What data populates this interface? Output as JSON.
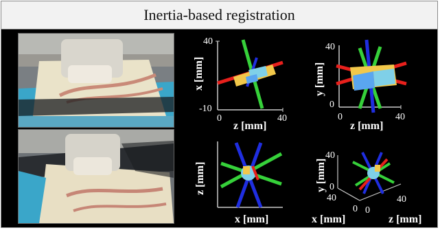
{
  "title": "Inertia-based registration",
  "plots": {
    "top_left": {
      "y_label": "x [mm]",
      "x_label": "z [mm]",
      "y_ticks": [
        "40",
        "-10"
      ],
      "x_ticks": [
        "0",
        "40"
      ]
    },
    "top_right": {
      "y_label": "y [mm]",
      "x_label": "z [mm]",
      "y_ticks": [
        "40",
        "0"
      ],
      "x_ticks": [
        "0",
        "40"
      ]
    },
    "bottom_left": {
      "y_label": "z [mm]",
      "x_label": "x [mm]"
    },
    "bottom_right": {
      "y_label": "y [mm]",
      "x_label": "z [mm]",
      "y_ticks": [
        "40",
        "0"
      ],
      "depth_label": "x [mm]",
      "depth_ticks": [
        "40",
        "0"
      ],
      "x_ticks": [
        "0",
        "40"
      ]
    }
  },
  "colors": {
    "x_axis": "#e8201c",
    "y_axis": "#36d13a",
    "z_axis": "#1f2ee0",
    "cloud": "#f2c84a"
  }
}
